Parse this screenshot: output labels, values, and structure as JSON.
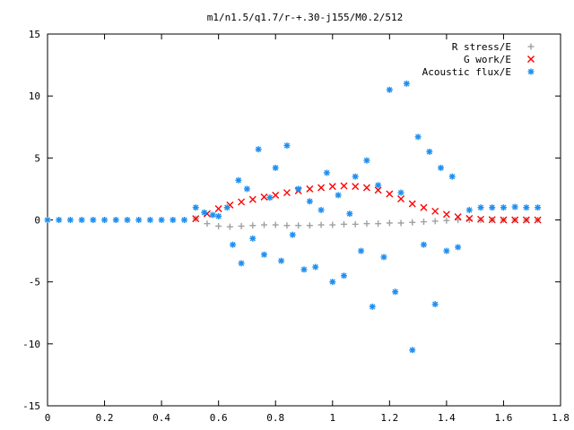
{
  "chart_data": {
    "type": "scatter",
    "title": "m1/n1.5/q1.7/r-+.30-j155/M0.2/512",
    "xlabel": "",
    "ylabel": "",
    "xlim": [
      0,
      1.8
    ],
    "ylim": [
      -15,
      15
    ],
    "xticks": [
      "0",
      "0.2",
      "0.4",
      "0.6",
      "0.8",
      "1",
      "1.2",
      "1.4",
      "1.6",
      "1.8"
    ],
    "yticks": [
      "15",
      "10",
      "5",
      "0",
      "-5",
      "-10",
      "-15"
    ],
    "legend_position": "top-right",
    "grid": false,
    "series": [
      {
        "name": "R stress/E",
        "marker": "plus",
        "color": "#a0a0a0",
        "x": [
          0.52,
          0.56,
          0.6,
          0.64,
          0.68,
          0.72,
          0.76,
          0.8,
          0.84,
          0.88,
          0.92,
          0.96,
          1.0,
          1.04,
          1.08,
          1.12,
          1.16,
          1.2,
          1.24,
          1.28,
          1.32,
          1.36,
          1.4,
          1.44,
          1.48,
          1.52,
          1.56,
          1.6,
          1.64,
          1.68,
          1.72
        ],
        "y": [
          0.1,
          -0.3,
          -0.5,
          -0.55,
          -0.5,
          -0.45,
          -0.4,
          -0.4,
          -0.45,
          -0.45,
          -0.45,
          -0.4,
          -0.4,
          -0.35,
          -0.35,
          -0.3,
          -0.3,
          -0.25,
          -0.25,
          -0.2,
          -0.15,
          -0.1,
          -0.05,
          0.0,
          0.0,
          0.0,
          0.0,
          0.0,
          0.0,
          0.0,
          0.0
        ]
      },
      {
        "name": "G work/E",
        "marker": "cross",
        "color": "#ff0000",
        "x": [
          0.52,
          0.56,
          0.6,
          0.64,
          0.68,
          0.72,
          0.76,
          0.8,
          0.84,
          0.88,
          0.92,
          0.96,
          1.0,
          1.04,
          1.08,
          1.12,
          1.16,
          1.2,
          1.24,
          1.28,
          1.32,
          1.36,
          1.4,
          1.44,
          1.48,
          1.52,
          1.56,
          1.6,
          1.64,
          1.68,
          1.72
        ],
        "y": [
          0.1,
          0.5,
          0.9,
          1.2,
          1.45,
          1.65,
          1.85,
          2.0,
          2.2,
          2.35,
          2.5,
          2.6,
          2.7,
          2.75,
          2.7,
          2.6,
          2.4,
          2.1,
          1.7,
          1.3,
          1.0,
          0.7,
          0.45,
          0.25,
          0.12,
          0.05,
          0.02,
          0.0,
          0.0,
          0.0,
          0.0
        ]
      },
      {
        "name": "Acoustic flux/E",
        "marker": "star",
        "color": "#1f8fef",
        "x": [
          0.0,
          0.04,
          0.08,
          0.12,
          0.16,
          0.2,
          0.24,
          0.28,
          0.32,
          0.36,
          0.4,
          0.44,
          0.48,
          0.52,
          0.55,
          0.58,
          0.6,
          0.63,
          0.65,
          0.67,
          0.68,
          0.7,
          0.72,
          0.74,
          0.76,
          0.78,
          0.8,
          0.82,
          0.84,
          0.86,
          0.88,
          0.9,
          0.92,
          0.94,
          0.96,
          0.98,
          1.0,
          1.02,
          1.04,
          1.06,
          1.08,
          1.1,
          1.12,
          1.14,
          1.16,
          1.18,
          1.2,
          1.22,
          1.24,
          1.26,
          1.28,
          1.3,
          1.32,
          1.34,
          1.36,
          1.38,
          1.4,
          1.42,
          1.44,
          1.48,
          1.52,
          1.56,
          1.6,
          1.64,
          1.68,
          1.72
        ],
        "y": [
          0.0,
          0.0,
          0.0,
          0.0,
          0.0,
          0.0,
          0.0,
          0.0,
          0.0,
          0.0,
          0.0,
          0.0,
          0.0,
          1.0,
          0.6,
          0.4,
          0.3,
          1.0,
          -2.0,
          3.2,
          -3.5,
          2.5,
          -1.5,
          5.7,
          -2.8,
          1.8,
          4.2,
          -3.3,
          6.0,
          -1.2,
          2.5,
          -4.0,
          1.5,
          -3.8,
          0.8,
          3.8,
          -5.0,
          2.0,
          -4.5,
          0.5,
          3.5,
          -2.5,
          4.8,
          -7.0,
          2.8,
          -3.0,
          10.5,
          -5.8,
          2.2,
          11.0,
          -10.5,
          6.7,
          -2.0,
          5.5,
          -6.8,
          4.2,
          -2.5,
          3.5,
          -2.2,
          0.8,
          1.0,
          1.0,
          1.0,
          1.05,
          1.0,
          1.0
        ]
      }
    ]
  }
}
